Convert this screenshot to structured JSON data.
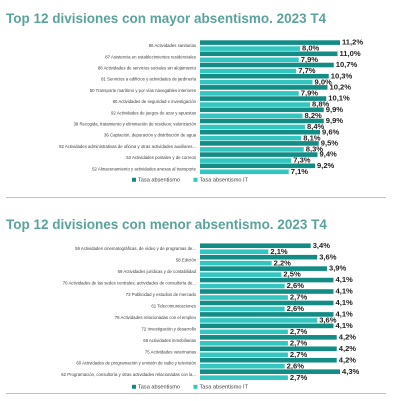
{
  "colors": {
    "primary": "#138c86",
    "secondary": "#33c6c0",
    "title": "#5aa39c",
    "separator": "#9fcfcb"
  },
  "chart_data": [
    {
      "type": "bar",
      "orientation": "horizontal",
      "title": "Top 12 divisiones con mayor absentismo. 2023 T4",
      "categories": [
        "86 Actividades sanitarias",
        "87 Asistencia en establecimientos residenciales",
        "88 Actividades de servicios sociales sin alojamiento",
        "81 Servicios a edificios y actividades de jardinería",
        "50 Transporte marítimo y por vías navegables interiores",
        "80 Actividades de seguridad e investigación",
        "92 Actividades de juegos de azar y apuestas",
        "38 Recogida, tratamiento y eliminación de residuos; valorización",
        "36 Captación, depuración y distribución de agua",
        "82 Actividades administrativas de oficina y otras actividades auxiliares...",
        "53 Actividades postales y de correos",
        "52 Almacenamiento y actividades anexas al transporte"
      ],
      "series": [
        {
          "name": "Tasa absentismo",
          "values": [
            11.2,
            11.0,
            10.7,
            10.3,
            10.2,
            10.1,
            9.9,
            9.9,
            9.6,
            9.5,
            9.4,
            9.2
          ]
        },
        {
          "name": "Tasa absentismo IT",
          "values": [
            8.0,
            7.9,
            7.7,
            9.0,
            7.9,
            8.8,
            8.2,
            8.4,
            8.1,
            8.3,
            7.3,
            7.1
          ]
        }
      ],
      "legend": "bottom-left",
      "grid": false,
      "xlim": [
        0,
        11.2
      ]
    },
    {
      "type": "bar",
      "orientation": "horizontal",
      "title": "Top 12 divisiones con menor absentismo. 2023 T4",
      "categories": [
        "59 Actividades cinematográficas, de vídeo y de programas de...",
        "58 Edición",
        "69 Actividades jurídicas y de contabilidad",
        "70 Actividades de las sedes centrales; actividades de consultoría de...",
        "73 Publicidad y estudios de mercado",
        "61 Telecomunicaciones",
        "78 Actividades relacionadas con el empleo",
        "72 Investigación y desarrollo",
        "68 Actividades inmobiliarias",
        "75 Actividades veterinarias",
        "60 Actividades de programación y emisión de radio y televisión",
        "62 Programación, consultoría y otras actividades relacionadas con la..."
      ],
      "series": [
        {
          "name": "Tasa absentismo",
          "values": [
            3.4,
            3.6,
            3.9,
            4.1,
            4.1,
            4.1,
            4.1,
            4.1,
            4.2,
            4.2,
            4.2,
            4.3
          ]
        },
        {
          "name": "Tasa absentismo IT",
          "values": [
            2.1,
            2.2,
            2.5,
            2.6,
            2.7,
            2.6,
            3.6,
            2.7,
            2.7,
            2.7,
            2.6,
            2.7
          ]
        }
      ],
      "legend": "bottom-left",
      "grid": false,
      "xlim": [
        0,
        4.3
      ]
    }
  ]
}
